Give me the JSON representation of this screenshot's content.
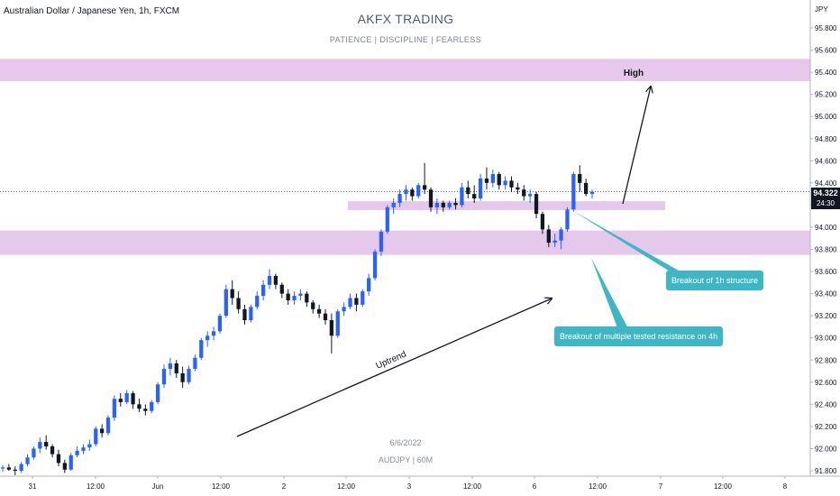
{
  "header": {
    "symbol": "Australian Dollar / Japanese Yen, 1h, FXCM",
    "brand": "AKFX TRADING",
    "subtitle": "PATIENCE  |  DISCIPLINE  |  FEARLESS"
  },
  "watermark": {
    "date": "6/6/2022",
    "symbol": "AUDJPY | 60M"
  },
  "price_axis": {
    "currency": "JPY",
    "labels": [
      "95.800",
      "95.600",
      "95.400",
      "95.200",
      "95.000",
      "94.800",
      "94.600",
      "94.400",
      "94.200",
      "94.000",
      "93.800",
      "93.600",
      "93.400",
      "93.200",
      "93.000",
      "92.800",
      "92.600",
      "92.400",
      "92.200",
      "92.000",
      "91.800"
    ]
  },
  "last_price": {
    "value": "94.322",
    "countdown": "24:30"
  },
  "time_axis": {
    "labels": [
      "31",
      "12:00",
      "Jun",
      "12:00",
      "2",
      "12:00",
      "3",
      "12:00",
      "6",
      "12:00",
      "7",
      "12:00",
      "8"
    ]
  },
  "annotations": {
    "high_label": "High",
    "uptrend_label": "Uptrend",
    "callout_1h": "Breakout of 1h structure",
    "callout_4h": "Breakout of multiple tested resistance on 4h"
  },
  "colors": {
    "bull": "#2962ff",
    "bear": "#131722",
    "zone": "#e1bee7",
    "callout": "#3fb6c4"
  },
  "chart_data": {
    "type": "candlestick",
    "title": "Australian Dollar / Japanese Yen, 1h, FXCM",
    "ylim": [
      91.8,
      95.9
    ],
    "zones": [
      {
        "label": "High",
        "low": 95.32,
        "high": 95.52
      },
      {
        "label": "",
        "low": 94.155,
        "high": 94.235
      },
      {
        "label": "",
        "low": 93.75,
        "high": 93.97
      }
    ],
    "candles": [
      [
        91.82,
        91.85,
        91.79,
        91.83
      ],
      [
        91.83,
        91.86,
        91.8,
        91.81
      ],
      [
        91.81,
        91.84,
        91.76,
        91.8
      ],
      [
        91.8,
        91.88,
        91.78,
        91.86
      ],
      [
        91.86,
        91.95,
        91.84,
        91.92
      ],
      [
        91.92,
        92.02,
        91.9,
        92.0
      ],
      [
        92.0,
        92.1,
        91.96,
        92.06
      ],
      [
        92.06,
        92.12,
        91.99,
        92.02
      ],
      [
        92.02,
        92.04,
        91.92,
        91.95
      ],
      [
        91.95,
        91.99,
        91.84,
        91.87
      ],
      [
        91.87,
        91.9,
        91.78,
        91.81
      ],
      [
        91.81,
        91.96,
        91.8,
        91.94
      ],
      [
        91.94,
        92.02,
        91.92,
        91.98
      ],
      [
        91.98,
        92.04,
        91.95,
        92.01
      ],
      [
        92.01,
        92.08,
        91.98,
        92.04
      ],
      [
        92.04,
        92.2,
        92.02,
        92.18
      ],
      [
        92.18,
        92.22,
        92.1,
        92.14
      ],
      [
        92.14,
        92.3,
        92.12,
        92.28
      ],
      [
        92.28,
        92.48,
        92.25,
        92.45
      ],
      [
        92.45,
        92.5,
        92.38,
        92.42
      ],
      [
        92.42,
        92.53,
        92.4,
        92.5
      ],
      [
        92.5,
        92.52,
        92.36,
        92.4
      ],
      [
        92.4,
        92.45,
        92.33,
        92.36
      ],
      [
        92.36,
        92.4,
        92.3,
        92.34
      ],
      [
        92.34,
        92.44,
        92.32,
        92.42
      ],
      [
        92.42,
        92.6,
        92.4,
        92.58
      ],
      [
        92.58,
        92.76,
        92.55,
        92.72
      ],
      [
        92.72,
        92.82,
        92.66,
        92.77
      ],
      [
        92.77,
        92.8,
        92.64,
        92.68
      ],
      [
        92.68,
        92.74,
        92.55,
        92.6
      ],
      [
        92.6,
        92.75,
        92.58,
        92.72
      ],
      [
        92.72,
        92.85,
        92.7,
        92.82
      ],
      [
        92.82,
        93.0,
        92.8,
        92.98
      ],
      [
        92.98,
        93.06,
        92.92,
        93.02
      ],
      [
        93.02,
        93.1,
        92.98,
        93.06
      ],
      [
        93.06,
        93.22,
        93.04,
        93.2
      ],
      [
        93.2,
        93.48,
        93.18,
        93.44
      ],
      [
        93.44,
        93.52,
        93.3,
        93.36
      ],
      [
        93.36,
        93.42,
        93.22,
        93.26
      ],
      [
        93.26,
        93.3,
        93.12,
        93.16
      ],
      [
        93.16,
        93.3,
        93.14,
        93.28
      ],
      [
        93.28,
        93.42,
        93.26,
        93.38
      ],
      [
        93.38,
        93.52,
        93.34,
        93.48
      ],
      [
        93.48,
        93.62,
        93.44,
        93.56
      ],
      [
        93.56,
        93.58,
        93.44,
        93.48
      ],
      [
        93.48,
        93.5,
        93.36,
        93.4
      ],
      [
        93.4,
        93.44,
        93.3,
        93.34
      ],
      [
        93.34,
        93.42,
        93.3,
        93.38
      ],
      [
        93.38,
        93.44,
        93.34,
        93.4
      ],
      [
        93.4,
        93.42,
        93.28,
        93.32
      ],
      [
        93.32,
        93.34,
        93.22,
        93.26
      ],
      [
        93.26,
        93.3,
        93.18,
        93.22
      ],
      [
        93.22,
        93.26,
        93.12,
        93.16
      ],
      [
        93.16,
        93.22,
        92.86,
        93.02
      ],
      [
        93.02,
        93.26,
        93.0,
        93.24
      ],
      [
        93.24,
        93.32,
        93.2,
        93.28
      ],
      [
        93.28,
        93.4,
        93.26,
        93.36
      ],
      [
        93.36,
        93.4,
        93.24,
        93.3
      ],
      [
        93.3,
        93.44,
        93.28,
        93.42
      ],
      [
        93.42,
        93.58,
        93.38,
        93.54
      ],
      [
        93.54,
        93.8,
        93.52,
        93.78
      ],
      [
        93.78,
        93.98,
        93.74,
        93.96
      ],
      [
        93.96,
        94.2,
        93.94,
        94.18
      ],
      [
        94.18,
        94.26,
        94.12,
        94.22
      ],
      [
        94.22,
        94.34,
        94.18,
        94.3
      ],
      [
        94.3,
        94.38,
        94.24,
        94.34
      ],
      [
        94.34,
        94.36,
        94.24,
        94.28
      ],
      [
        94.28,
        94.4,
        94.26,
        94.38
      ],
      [
        94.38,
        94.58,
        94.3,
        94.34
      ],
      [
        94.34,
        94.36,
        94.14,
        94.18
      ],
      [
        94.18,
        94.26,
        94.12,
        94.22
      ],
      [
        94.22,
        94.24,
        94.14,
        94.18
      ],
      [
        94.18,
        94.24,
        94.16,
        94.22
      ],
      [
        94.22,
        94.26,
        94.16,
        94.2
      ],
      [
        94.2,
        94.4,
        94.18,
        94.36
      ],
      [
        94.36,
        94.42,
        94.26,
        94.3
      ],
      [
        94.3,
        94.38,
        94.22,
        94.26
      ],
      [
        94.26,
        94.48,
        94.24,
        94.44
      ],
      [
        94.44,
        94.54,
        94.34,
        94.4
      ],
      [
        94.4,
        94.52,
        94.36,
        94.48
      ],
      [
        94.48,
        94.5,
        94.34,
        94.38
      ],
      [
        94.38,
        94.46,
        94.34,
        94.42
      ],
      [
        94.42,
        94.46,
        94.32,
        94.36
      ],
      [
        94.36,
        94.4,
        94.3,
        94.34
      ],
      [
        94.34,
        94.38,
        94.24,
        94.28
      ],
      [
        94.28,
        94.34,
        94.22,
        94.3
      ],
      [
        94.3,
        94.32,
        94.08,
        94.12
      ],
      [
        94.12,
        94.14,
        93.94,
        93.98
      ],
      [
        93.98,
        94.02,
        93.82,
        93.86
      ],
      [
        93.86,
        93.94,
        93.82,
        93.88
      ],
      [
        93.88,
        94.0,
        93.8,
        93.98
      ],
      [
        93.98,
        94.18,
        93.96,
        94.16
      ],
      [
        94.16,
        94.5,
        94.14,
        94.48
      ],
      [
        94.48,
        94.56,
        94.32,
        94.4
      ],
      [
        94.4,
        94.44,
        94.28,
        94.3
      ],
      [
        94.3,
        94.34,
        94.26,
        94.32
      ]
    ]
  }
}
